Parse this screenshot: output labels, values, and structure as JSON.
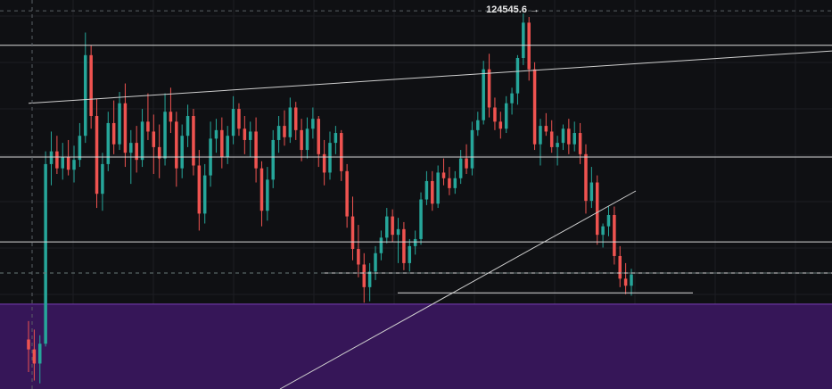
{
  "chart_data": {
    "type": "candlestick",
    "title": "",
    "xlabel": "",
    "ylabel": "",
    "ylim": [
      98000,
      125500
    ],
    "grid": true,
    "annotations": [
      {
        "text": "124545.6 →",
        "value": 124545.6
      }
    ],
    "horizontal_levels": [
      122300,
      114400,
      108400,
      106200,
      104800
    ],
    "zone": {
      "from": 97000,
      "to": 104000,
      "color": "#361658"
    },
    "trendlines": [
      {
        "from": [
          0,
          118200
        ],
        "to": [
          200,
          121900
        ],
        "color": "#cfcfcf"
      },
      {
        "from": [
          70,
          97500
        ],
        "to": [
          155,
          112700
        ],
        "color": "#cfcfcf"
      }
    ],
    "colors": {
      "up": "#26a69a",
      "down": "#ef5350",
      "background": "#0f1013",
      "grid": "#1c1e23",
      "level": "#d9d9d9",
      "dashed": "#6a7a78"
    },
    "candles": [
      [
        101500,
        102800,
        99200,
        100800
      ],
      [
        100800,
        102200,
        98600,
        99800
      ],
      [
        99800,
        101800,
        98400,
        101200
      ],
      [
        101200,
        114800,
        101000,
        113900
      ],
      [
        113900,
        116200,
        112400,
        114800
      ],
      [
        114800,
        115900,
        113200,
        113600
      ],
      [
        113600,
        115400,
        112800,
        114400
      ],
      [
        114400,
        115600,
        113100,
        113500
      ],
      [
        113500,
        115200,
        112600,
        114200
      ],
      [
        114200,
        116800,
        113700,
        115900
      ],
      [
        115900,
        123200,
        115400,
        121600
      ],
      [
        121600,
        122300,
        116400,
        117300
      ],
      [
        117300,
        118500,
        110800,
        111800
      ],
      [
        111800,
        114700,
        110600,
        113900
      ],
      [
        113900,
        117600,
        113400,
        116800
      ],
      [
        116800,
        118400,
        114600,
        115300
      ],
      [
        115300,
        119000,
        114900,
        118200
      ],
      [
        118200,
        119600,
        113700,
        114700
      ],
      [
        114700,
        116300,
        112500,
        115400
      ],
      [
        115400,
        116600,
        113300,
        114200
      ],
      [
        114200,
        117800,
        113700,
        116900
      ],
      [
        116900,
        118900,
        115600,
        116200
      ],
      [
        116200,
        117400,
        113200,
        115100
      ],
      [
        115100,
        116700,
        112900,
        114300
      ],
      [
        114300,
        118900,
        113800,
        117600
      ],
      [
        117600,
        119300,
        116100,
        116900
      ],
      [
        116900,
        117600,
        112300,
        113600
      ],
      [
        113600,
        116700,
        112900,
        115900
      ],
      [
        115900,
        118100,
        115100,
        117300
      ],
      [
        117300,
        117800,
        113100,
        113800
      ],
      [
        113800,
        114900,
        109200,
        110400
      ],
      [
        110400,
        113900,
        109700,
        113100
      ],
      [
        113100,
        116900,
        112300,
        115700
      ],
      [
        115700,
        117100,
        114700,
        116300
      ],
      [
        116300,
        117200,
        113600,
        114400
      ],
      [
        114400,
        116600,
        113900,
        115900
      ],
      [
        115900,
        118700,
        115300,
        117800
      ],
      [
        117800,
        118200,
        115900,
        116400
      ],
      [
        116400,
        117300,
        114600,
        115600
      ],
      [
        115600,
        116900,
        114400,
        116200
      ],
      [
        116200,
        117200,
        112600,
        113600
      ],
      [
        113600,
        114100,
        109500,
        110600
      ],
      [
        110600,
        113700,
        109900,
        112800
      ],
      [
        112800,
        116300,
        112200,
        115600
      ],
      [
        115600,
        117300,
        114700,
        116600
      ],
      [
        116600,
        117700,
        115200,
        115800
      ],
      [
        115800,
        118600,
        115400,
        117900
      ],
      [
        117900,
        118300,
        115600,
        116300
      ],
      [
        116300,
        117100,
        114100,
        114900
      ],
      [
        114900,
        117200,
        114300,
        116400
      ],
      [
        116400,
        117900,
        115700,
        117100
      ],
      [
        117100,
        117300,
        113700,
        114600
      ],
      [
        114600,
        115600,
        112400,
        113300
      ],
      [
        113300,
        116200,
        112800,
        115400
      ],
      [
        115400,
        116600,
        114600,
        116100
      ],
      [
        116100,
        116300,
        112700,
        113400
      ],
      [
        113400,
        113900,
        109400,
        110200
      ],
      [
        110200,
        111600,
        107100,
        107900
      ],
      [
        107900,
        109600,
        105900,
        106800
      ],
      [
        106800,
        107600,
        104100,
        105200
      ],
      [
        105200,
        106900,
        104200,
        106300
      ],
      [
        106300,
        108100,
        105700,
        107600
      ],
      [
        107600,
        109200,
        107100,
        108700
      ],
      [
        108700,
        110800,
        108300,
        110200
      ],
      [
        110200,
        110700,
        108400,
        108900
      ],
      [
        108900,
        110100,
        106900,
        109300
      ],
      [
        109300,
        109800,
        106400,
        106900
      ],
      [
        106900,
        108600,
        106300,
        108100
      ],
      [
        108100,
        109200,
        107500,
        108600
      ],
      [
        108600,
        111900,
        108200,
        111400
      ],
      [
        111400,
        113400,
        111000,
        112700
      ],
      [
        112700,
        113400,
        110600,
        111100
      ],
      [
        111100,
        113800,
        110800,
        113300
      ],
      [
        113300,
        114300,
        112400,
        112900
      ],
      [
        112900,
        113700,
        111700,
        112200
      ],
      [
        112200,
        113400,
        111800,
        112900
      ],
      [
        112900,
        114900,
        112500,
        114300
      ],
      [
        114300,
        115300,
        113200,
        113600
      ],
      [
        113600,
        116900,
        113100,
        116300
      ],
      [
        116300,
        117600,
        115900,
        117000
      ],
      [
        117000,
        121200,
        116700,
        120600
      ],
      [
        120600,
        121700,
        117200,
        117900
      ],
      [
        117900,
        118600,
        116300,
        116900
      ],
      [
        116900,
        117600,
        115700,
        116400
      ],
      [
        116400,
        118700,
        116100,
        118200
      ],
      [
        118200,
        119300,
        117400,
        118900
      ],
      [
        118900,
        121600,
        118100,
        121400
      ],
      [
        121400,
        124546,
        120900,
        123900
      ],
      [
        123900,
        124300,
        119800,
        120600
      ],
      [
        120600,
        121100,
        114900,
        115300
      ],
      [
        115300,
        117100,
        113800,
        116600
      ],
      [
        116600,
        117500,
        115900,
        116200
      ],
      [
        116200,
        117000,
        114700,
        115100
      ],
      [
        115100,
        115900,
        113800,
        115400
      ],
      [
        115400,
        116700,
        114900,
        116400
      ],
      [
        116400,
        117100,
        114600,
        115300
      ],
      [
        115300,
        116900,
        114800,
        116100
      ],
      [
        116100,
        116800,
        113900,
        114600
      ],
      [
        114600,
        115300,
        110400,
        111300
      ],
      [
        111300,
        113700,
        110800,
        112600
      ],
      [
        112600,
        113100,
        108200,
        108900
      ],
      [
        108900,
        109700,
        108000,
        109500
      ],
      [
        109500,
        110900,
        108800,
        110300
      ],
      [
        110300,
        110900,
        106800,
        107400
      ],
      [
        107400,
        108100,
        105200,
        105800
      ],
      [
        105800,
        106900,
        104700,
        105300
      ],
      [
        105300,
        106500,
        104600,
        106100
      ]
    ]
  }
}
